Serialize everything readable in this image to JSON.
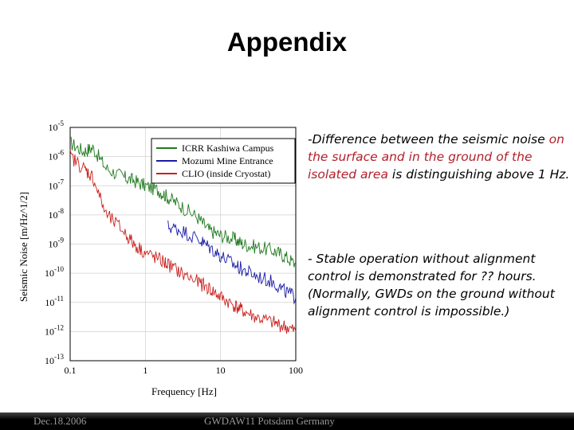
{
  "slide": {
    "title": "Appendix",
    "note1": {
      "prefix": "-",
      "part1": "Difference between the seismic noise ",
      "part2": "on the surface and in the ground of the isolated area",
      "part3": " is distinguishing above 1 Hz."
    },
    "note2": {
      "line1": "- Stable operation without alignment control is demonstrated for ?? hours.",
      "line2": "(Normally, GWDs on the ground without alignment control is impossible.)"
    },
    "footer": {
      "date": "Dec.18.2006",
      "conference": "GWDAW11 Potsdam Germany"
    }
  },
  "chart_data": {
    "type": "line",
    "xlabel": "Frequency [Hz]",
    "ylabel": "Seismic Noise [m/Hz^1/2]",
    "x_scale": "log",
    "y_scale": "log",
    "xlim": [
      0.1,
      100
    ],
    "ylim": [
      1e-13,
      1e-05
    ],
    "x_ticks": [
      "0.1",
      "1",
      "10",
      "100"
    ],
    "y_ticks": [
      {
        "base": "10",
        "exp": "-5"
      },
      {
        "base": "10",
        "exp": "-6"
      },
      {
        "base": "10",
        "exp": "-7"
      },
      {
        "base": "10",
        "exp": "-8"
      },
      {
        "base": "10",
        "exp": "-9"
      },
      {
        "base": "10",
        "exp": "-10"
      },
      {
        "base": "10",
        "exp": "-11"
      },
      {
        "base": "10",
        "exp": "-12"
      },
      {
        "base": "10",
        "exp": "-13"
      }
    ],
    "grid": true,
    "legend_position": "top-right",
    "series": [
      {
        "name": "ICRR Kashiwa Campus",
        "color": "#1f7a1f",
        "x": [
          0.1,
          0.15,
          0.2,
          0.3,
          0.5,
          0.7,
          1,
          1.5,
          2,
          3,
          5,
          7,
          10,
          15,
          20,
          30,
          50,
          70,
          100
        ],
        "y": [
          3e-06,
          1.5e-06,
          2e-06,
          4e-07,
          2e-07,
          1.5e-07,
          1e-07,
          7e-08,
          4e-08,
          2e-08,
          8e-09,
          3e-09,
          2e-09,
          1.5e-09,
          1e-09,
          8e-10,
          6e-10,
          4e-10,
          2e-10
        ]
      },
      {
        "name": "Mozumi Mine Entrance",
        "color": "#1a1aa6",
        "x": [
          2,
          3,
          5,
          7,
          10,
          15,
          20,
          30,
          50,
          70,
          100
        ],
        "y": [
          4e-09,
          3e-09,
          1.5e-09,
          8e-10,
          4e-10,
          2e-10,
          1.3e-10,
          8e-11,
          5e-11,
          2.5e-11,
          1.5e-11
        ]
      },
      {
        "name": "CLIO (inside Cryostat)",
        "color": "#c8201e",
        "x": [
          0.1,
          0.15,
          0.2,
          0.3,
          0.5,
          0.7,
          1,
          1.5,
          2,
          3,
          5,
          7,
          10,
          15,
          20,
          30,
          50,
          70,
          100
        ],
        "y": [
          1e-06,
          4e-07,
          2e-07,
          1e-08,
          3e-09,
          1e-09,
          5e-10,
          3e-10,
          2e-10,
          1e-10,
          5e-11,
          3e-11,
          1.5e-11,
          8e-12,
          5e-12,
          3e-12,
          2e-12,
          1.5e-12,
          1e-12
        ]
      }
    ]
  }
}
